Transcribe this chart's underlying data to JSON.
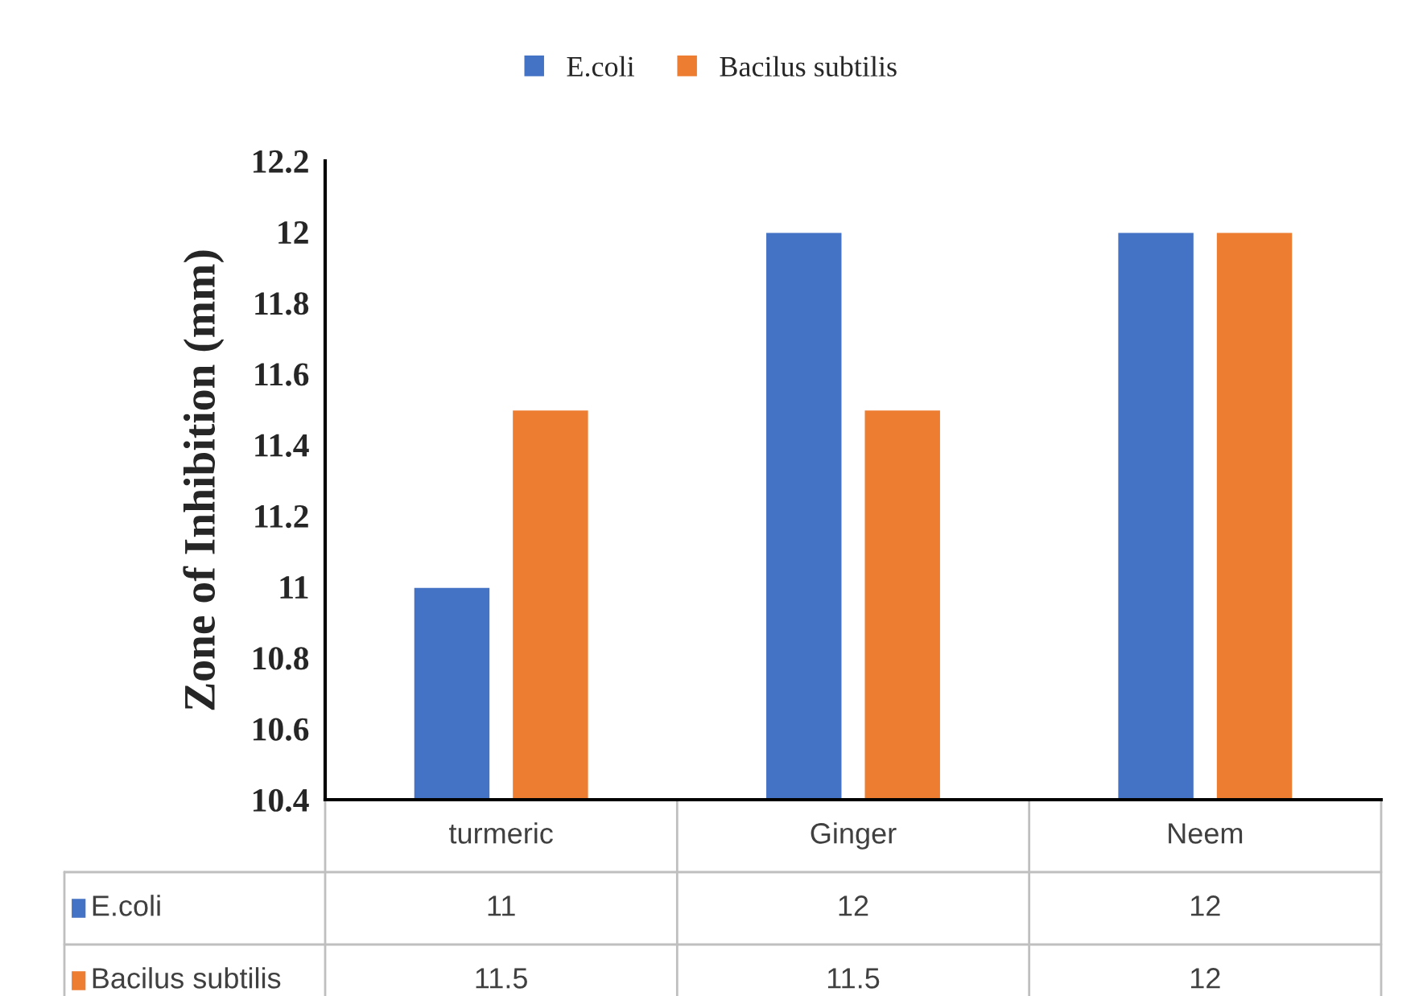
{
  "chart_data": {
    "type": "bar",
    "ylabel": "Zone of Inhibition (mm)",
    "categories": [
      "turmeric",
      "Ginger",
      "Neem"
    ],
    "series": [
      {
        "name": "E.coli",
        "color": "#4472c4",
        "values": [
          11,
          12,
          12
        ]
      },
      {
        "name": "Bacilus subtilis",
        "color": "#ed7d31",
        "values": [
          11.5,
          11.5,
          12
        ]
      }
    ],
    "ylim": [
      10.4,
      12.2
    ],
    "yticks": [
      10.4,
      10.6,
      10.8,
      11,
      11.2,
      11.4,
      11.6,
      11.8,
      12,
      12.2
    ],
    "grid": false,
    "legend": "top",
    "data_labels": true
  }
}
